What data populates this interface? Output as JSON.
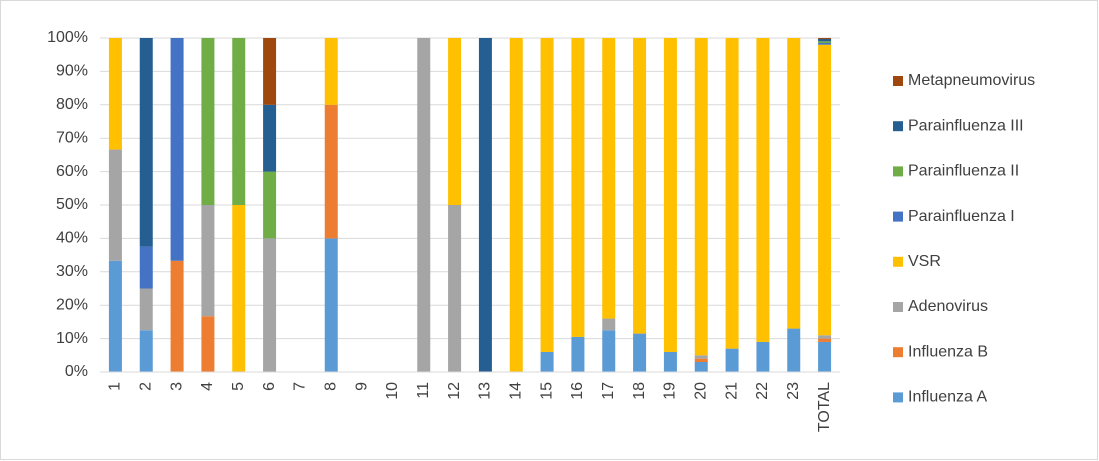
{
  "chart_data": {
    "type": "stacked-bar-100",
    "categories": [
      "1",
      "2",
      "3",
      "4",
      "5",
      "6",
      "7",
      "8",
      "9",
      "10",
      "11",
      "12",
      "13",
      "14",
      "15",
      "16",
      "17",
      "18",
      "19",
      "20",
      "21",
      "22",
      "23",
      "TOTAL"
    ],
    "series": [
      {
        "name": "Influenza A",
        "color": "#5b9bd5",
        "values": [
          33.3,
          12.5,
          0,
          0,
          0,
          0,
          0,
          40,
          0,
          0,
          0,
          0,
          0,
          0,
          6,
          10.5,
          12.5,
          11.5,
          6,
          3,
          7,
          9,
          13,
          9
        ]
      },
      {
        "name": "Influenza B",
        "color": "#ed7d31",
        "values": [
          0,
          0,
          33.3,
          16.7,
          0,
          0,
          0,
          40,
          0,
          0,
          0,
          0,
          0,
          0,
          0,
          0,
          0,
          0,
          0,
          1,
          0,
          0,
          0,
          1
        ]
      },
      {
        "name": "Adenovirus",
        "color": "#a5a5a5",
        "values": [
          33.3,
          12.5,
          0,
          33.3,
          0,
          40,
          0,
          0,
          0,
          0,
          100,
          50,
          0,
          0,
          0,
          0,
          3.5,
          0,
          0,
          1,
          0,
          0,
          0,
          1
        ]
      },
      {
        "name": "VSR",
        "color": "#ffc000",
        "values": [
          33.4,
          0,
          0,
          0,
          50,
          0,
          0,
          20,
          0,
          0,
          0,
          50,
          0,
          100,
          94,
          89.5,
          84,
          88.5,
          94,
          95,
          93,
          91,
          87,
          87
        ]
      },
      {
        "name": "Parainfluenza I",
        "color": "#4472c4",
        "values": [
          0,
          12.5,
          66.7,
          0,
          0,
          0,
          0,
          0,
          0,
          0,
          0,
          0,
          0,
          0,
          0,
          0,
          0,
          0,
          0,
          0,
          0,
          0,
          0,
          0.5
        ]
      },
      {
        "name": "Parainfluenza II",
        "color": "#70ad47",
        "values": [
          0,
          0,
          0,
          50,
          50,
          20,
          0,
          0,
          0,
          0,
          0,
          0,
          0,
          0,
          0,
          0,
          0,
          0,
          0,
          0,
          0,
          0,
          0,
          0.5
        ]
      },
      {
        "name": "Parainfluenza III",
        "color": "#255e91",
        "values": [
          0,
          62.5,
          0,
          0,
          0,
          20,
          0,
          0,
          0,
          0,
          0,
          0,
          100,
          0,
          0,
          0,
          0,
          0,
          0,
          0,
          0,
          0,
          0,
          0.7
        ]
      },
      {
        "name": "Metapneumovirus",
        "color": "#9e480e",
        "values": [
          0,
          0,
          0,
          0,
          0,
          20,
          0,
          0,
          0,
          0,
          0,
          0,
          0,
          0,
          0,
          0,
          0,
          0,
          0,
          0,
          0,
          0,
          0,
          0.3
        ]
      }
    ],
    "ylim": [
      0,
      100
    ],
    "yticks": [
      {
        "value": 0,
        "label": "0%"
      },
      {
        "value": 10,
        "label": "10%"
      },
      {
        "value": 20,
        "label": "20%"
      },
      {
        "value": 30,
        "label": "30%"
      },
      {
        "value": 40,
        "label": "40%"
      },
      {
        "value": 50,
        "label": "50%"
      },
      {
        "value": 60,
        "label": "60%"
      },
      {
        "value": 70,
        "label": "70%"
      },
      {
        "value": 80,
        "label": "80%"
      },
      {
        "value": 90,
        "label": "90%"
      },
      {
        "value": 100,
        "label": "100%"
      }
    ],
    "grid": true,
    "legend": "right"
  }
}
